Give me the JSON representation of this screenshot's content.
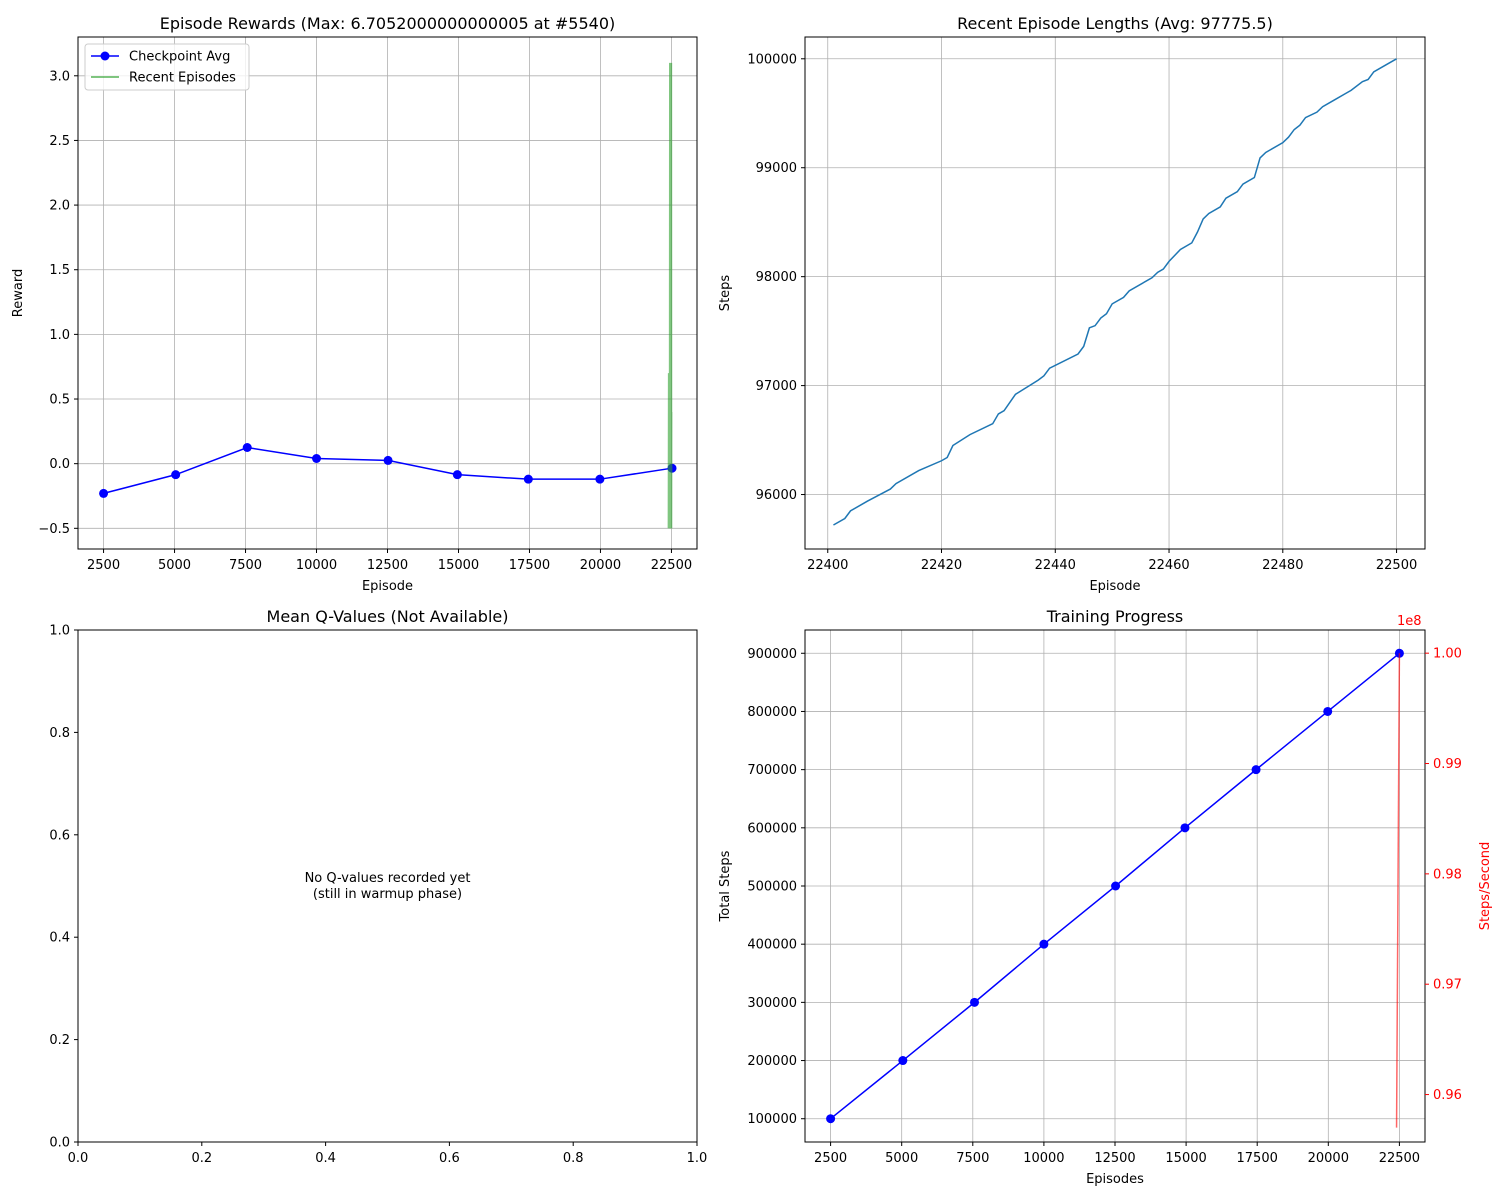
{
  "chart_data": [
    {
      "id": "rewards",
      "type": "line",
      "title": "Episode Rewards (Max: 6.7052000000000005 at #5540)",
      "xlabel": "Episode",
      "ylabel": "Reward",
      "xlim": [
        1600,
        23400
      ],
      "ylim": [
        -0.66,
        3.3
      ],
      "xticks": [
        2500,
        5000,
        7500,
        10000,
        12500,
        15000,
        17500,
        20000,
        22500
      ],
      "yticks": [
        -0.5,
        0.0,
        0.5,
        1.0,
        1.5,
        2.0,
        2.5,
        3.0
      ],
      "ytick_labels": [
        "−0.5",
        "0.0",
        "0.5",
        "1.0",
        "1.5",
        "2.0",
        "2.5",
        "3.0"
      ],
      "grid": true,
      "legend": {
        "position": "top-left"
      },
      "series": [
        {
          "name": "Checkpoint Avg",
          "color": "#0000ff",
          "marker": "circle",
          "x": [
            2500,
            5040,
            7560,
            10000,
            12520,
            14960,
            17460,
            19980,
            22520
          ],
          "y": [
            -0.23,
            -0.085,
            0.125,
            0.04,
            0.025,
            -0.085,
            -0.12,
            -0.12,
            -0.035
          ]
        },
        {
          "name": "Recent Episodes",
          "color": "#2ca02c",
          "marker": "none",
          "x": [
            22401,
            22410,
            22420,
            22430,
            22440,
            22450,
            22460,
            22470,
            22480,
            22490,
            22495,
            22500
          ],
          "y": [
            -0.5,
            0.7,
            -0.5,
            0.3,
            -0.5,
            3.1,
            -0.5,
            1.9,
            -0.5,
            3.1,
            -0.5,
            0.4
          ]
        }
      ]
    },
    {
      "id": "lengths",
      "type": "line",
      "title": "Recent Episode Lengths (Avg: 97775.5)",
      "xlabel": "Episode",
      "ylabel": "Steps",
      "xlim": [
        22396,
        22505
      ],
      "ylim": [
        95500,
        100200
      ],
      "xticks": [
        22400,
        22420,
        22440,
        22460,
        22480,
        22500
      ],
      "yticks": [
        96000,
        97000,
        98000,
        99000,
        100000
      ],
      "grid": true,
      "series": [
        {
          "color": "#1f77b4",
          "x": [
            22401,
            22403,
            22404,
            22407,
            22411,
            22412,
            22416,
            22420,
            22421,
            22422,
            22425,
            22429,
            22430,
            22431,
            22433,
            22437,
            22438,
            22439,
            22444,
            22445,
            22446,
            22447,
            22448,
            22449,
            22450,
            22452,
            22453,
            22457,
            22458,
            22459,
            22460,
            22462,
            22464,
            22465,
            22466,
            22467,
            22469,
            22470,
            22472,
            22473,
            22475,
            22476,
            22477,
            22480,
            22481,
            22482,
            22483,
            22484,
            22486,
            22487,
            22489,
            22491,
            22492,
            22494,
            22495,
            22496,
            22498,
            22500
          ],
          "y": [
            95720,
            95780,
            95850,
            95940,
            96050,
            96100,
            96220,
            96310,
            96340,
            96450,
            96550,
            96650,
            96740,
            96770,
            96920,
            97050,
            97090,
            97160,
            97290,
            97360,
            97530,
            97550,
            97620,
            97660,
            97750,
            97810,
            97870,
            97990,
            98040,
            98070,
            98140,
            98250,
            98310,
            98410,
            98530,
            98580,
            98640,
            98720,
            98780,
            98850,
            98910,
            99090,
            99140,
            99230,
            99280,
            99350,
            99390,
            99460,
            99510,
            99560,
            99620,
            99680,
            99710,
            99790,
            99810,
            99880,
            99940,
            100000
          ]
        }
      ]
    },
    {
      "id": "qvalues",
      "type": "line",
      "title": "Mean Q-Values (Not Available)",
      "xlim": [
        0,
        1
      ],
      "ylim": [
        0,
        1
      ],
      "xticks": [
        0.0,
        0.2,
        0.4,
        0.6,
        0.8,
        1.0
      ],
      "yticks": [
        0.0,
        0.2,
        0.4,
        0.6,
        0.8,
        1.0
      ],
      "grid": false,
      "annotation": [
        "No Q-values recorded yet",
        "(still in warmup phase)"
      ],
      "series": []
    },
    {
      "id": "progress",
      "type": "line",
      "title": "Training Progress",
      "xlabel": "Episodes",
      "ylabel": "Total Steps",
      "ylabel_right": "Steps/Second",
      "right_offset_label": "1e8",
      "xlim": [
        1600,
        23400
      ],
      "ylim": [
        60000,
        940000
      ],
      "ylim_right": [
        0.9557,
        1.0021
      ],
      "xticks": [
        2500,
        5000,
        7500,
        10000,
        12500,
        15000,
        17500,
        20000,
        22500
      ],
      "yticks": [
        100000,
        200000,
        300000,
        400000,
        500000,
        600000,
        700000,
        800000,
        900000
      ],
      "yticks_right": [
        0.96,
        0.97,
        0.98,
        0.99,
        1.0
      ],
      "yticks_right_labels": [
        "0.96",
        "0.97",
        "0.98",
        "0.99",
        "1.00"
      ],
      "grid": true,
      "series": [
        {
          "axis": "left",
          "color": "#0000ff",
          "marker": "circle",
          "x": [
            2500,
            5040,
            7560,
            10000,
            12520,
            14960,
            17460,
            19980,
            22500
          ],
          "y": [
            100000,
            200000,
            300000,
            400000,
            500000,
            600000,
            700000,
            800000,
            900000
          ]
        },
        {
          "axis": "right",
          "color": "#ff0000",
          "x": [
            22400,
            22500
          ],
          "y": [
            0.957,
            1.0
          ]
        }
      ]
    }
  ]
}
